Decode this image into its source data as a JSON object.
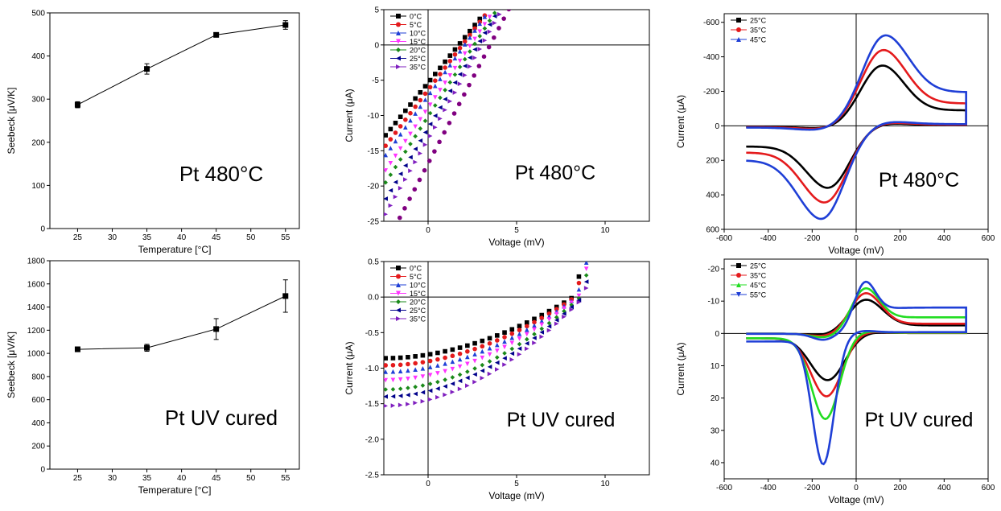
{
  "chart_data": [
    {
      "id": "seebeck-480",
      "type": "line",
      "annotation": "Pt 480°C",
      "xlabel": "Temperature [°C]",
      "ylabel": "Seebeck [μV/K]",
      "xlim": [
        21,
        57
      ],
      "ylim": [
        0,
        500
      ],
      "xticks": [
        25,
        30,
        35,
        40,
        45,
        50,
        55
      ],
      "yticks": [
        0,
        100,
        200,
        300,
        400,
        500
      ],
      "series": [
        {
          "color": "#000000",
          "marker": "square",
          "x": [
            25,
            35,
            45,
            55
          ],
          "y": [
            287,
            370,
            449,
            472
          ],
          "err": [
            7,
            12,
            5,
            10
          ]
        }
      ]
    },
    {
      "id": "iv-480",
      "type": "scatter",
      "annotation": "Pt 480°C",
      "xlabel": "Voltage (mV)",
      "ylabel": "Current (μA)",
      "xlim": [
        -2.5,
        12.5
      ],
      "ylim": [
        -25,
        5
      ],
      "xticks": [
        0,
        5,
        10
      ],
      "yticks": [
        -25,
        -20,
        -15,
        -10,
        -5,
        0,
        5
      ],
      "legend": "top-left",
      "series": [
        {
          "name": "0°C",
          "color": "#000000",
          "marker": "square",
          "x0": -2.4,
          "x1": 3.0,
          "y0": -12.8,
          "slope": 3.1
        },
        {
          "name": "5°C",
          "color": "#e41a1c",
          "marker": "circle",
          "x0": -2.4,
          "x1": 3.2,
          "y0": -14.3,
          "slope": 3.3
        },
        {
          "name": "10°C",
          "color": "#1f3fd6",
          "marker": "tri-up",
          "x0": -2.4,
          "x1": 3.4,
          "y0": -15.6,
          "slope": 3.5
        },
        {
          "name": "15°C",
          "color": "#ff33ff",
          "marker": "tri-down",
          "x0": -2.4,
          "x1": 3.6,
          "y0": -17.8,
          "slope": 3.7
        },
        {
          "name": "20°C",
          "color": "#1a8a1a",
          "marker": "diamond",
          "x0": -2.4,
          "x1": 3.8,
          "y0": -19.5,
          "slope": 3.9
        },
        {
          "name": "25°C",
          "color": "#00008b",
          "marker": "tri-left",
          "x0": -2.4,
          "x1": 4.0,
          "y0": -21.8,
          "slope": 4.2
        },
        {
          "name": "35°C",
          "color": "#7f1fbf",
          "marker": "tri-right",
          "x0": -2.4,
          "x1": 4.3,
          "y0": -24.0,
          "slope": 4.4
        },
        {
          "name": "",
          "color": "#800080",
          "marker": "circle",
          "x0": -1.6,
          "x1": 4.6,
          "y0": -24.5,
          "slope": 4.8
        }
      ]
    },
    {
      "id": "cv-480",
      "type": "line",
      "annotation": "Pt 480°C",
      "xlabel": "Voltage (mV)",
      "ylabel": "Current (μA)",
      "xlim": [
        -600,
        600
      ],
      "ylim": [
        600,
        -650
      ],
      "y_inverted": true,
      "xticks": [
        -600,
        -400,
        -200,
        0,
        200,
        400,
        600
      ],
      "yticks": [
        -600,
        -400,
        -200,
        0,
        200,
        400,
        600
      ],
      "legend": "top-left",
      "series": [
        {
          "name": "25°C",
          "color": "#000000",
          "marker": "square",
          "ipa": -350,
          "ipc": 360,
          "epa": 120,
          "epc": -130,
          "width": 140,
          "tailA": -90,
          "tailC": 120
        },
        {
          "name": "35°C",
          "color": "#e41a1c",
          "marker": "circle",
          "ipa": -440,
          "ipc": 445,
          "epa": 125,
          "epc": -145,
          "width": 145,
          "tailA": -130,
          "tailC": 155
        },
        {
          "name": "45°C",
          "color": "#1f3fd6",
          "marker": "tri-up",
          "ipa": -525,
          "ipc": 540,
          "epa": 135,
          "epc": -160,
          "width": 150,
          "tailA": -195,
          "tailC": 200
        }
      ]
    },
    {
      "id": "seebeck-uv",
      "type": "line",
      "annotation": "Pt UV cured",
      "xlabel": "Temperature [°C]",
      "ylabel": "Seebeck [μV/K]",
      "xlim": [
        21,
        57
      ],
      "ylim": [
        0,
        1800
      ],
      "xticks": [
        25,
        30,
        35,
        40,
        45,
        50,
        55
      ],
      "yticks": [
        0,
        200,
        400,
        600,
        800,
        1000,
        1200,
        1400,
        1600,
        1800
      ],
      "series": [
        {
          "color": "#000000",
          "marker": "square",
          "x": [
            25,
            35,
            45,
            55
          ],
          "y": [
            1035,
            1048,
            1210,
            1495
          ],
          "err": [
            20,
            30,
            90,
            140
          ]
        }
      ]
    },
    {
      "id": "iv-uv",
      "type": "scatter",
      "annotation": "Pt UV cured",
      "xlabel": "Voltage (mV)",
      "ylabel": "Current (μA)",
      "xlim": [
        -2.5,
        12.5
      ],
      "ylim": [
        -2.5,
        0.5
      ],
      "xticks": [
        0,
        5,
        10
      ],
      "yticks": [
        -2.5,
        -2.0,
        -1.5,
        -1.0,
        -0.5,
        0.0,
        0.5
      ],
      "legend": "top-left",
      "series": [
        {
          "name": "0°C",
          "color": "#000000",
          "marker": "square",
          "start": -0.86,
          "v0": 8.2
        },
        {
          "name": "5°C",
          "color": "#e41a1c",
          "marker": "circle",
          "start": -0.96,
          "v0": 8.3
        },
        {
          "name": "10°C",
          "color": "#1f3fd6",
          "marker": "tri-up",
          "start": -1.05,
          "v0": 8.4
        },
        {
          "name": "15°C",
          "color": "#ff33ff",
          "marker": "tri-down",
          "start": -1.17,
          "v0": 8.5
        },
        {
          "name": "20°C",
          "color": "#1a8a1a",
          "marker": "diamond",
          "start": -1.3,
          "v0": 8.6
        },
        {
          "name": "25°C",
          "color": "#00008b",
          "marker": "tri-left",
          "start": -1.4,
          "v0": 8.7
        },
        {
          "name": "35°C",
          "color": "#7f1fbf",
          "marker": "tri-right",
          "start": -1.53,
          "v0": 8.8
        }
      ]
    },
    {
      "id": "cv-uv",
      "type": "line",
      "annotation": "Pt UV cured",
      "xlabel": "Voltage (mV)",
      "ylabel": "Current (μA)",
      "xlim": [
        -600,
        600
      ],
      "ylim": [
        45,
        -23
      ],
      "y_inverted": true,
      "xticks": [
        -600,
        -400,
        -200,
        0,
        200,
        400,
        600
      ],
      "yticks": [
        -20,
        -10,
        0,
        10,
        20,
        30,
        40
      ],
      "legend": "top-left",
      "series": [
        {
          "name": "25°C",
          "color": "#000000",
          "marker": "square",
          "ipa": -10.5,
          "ipc": 14.5,
          "epa": 45,
          "epc": -130,
          "width": 110,
          "tailA": -2.5,
          "tailC": 1.5
        },
        {
          "name": "35°C",
          "color": "#e41a1c",
          "marker": "circle",
          "ipa": -12.5,
          "ipc": 19.5,
          "epa": 45,
          "epc": -135,
          "width": 100,
          "tailA": -3.0,
          "tailC": 1.5
        },
        {
          "name": "45°C",
          "color": "#22dd22",
          "marker": "tri-up",
          "ipa": -14.0,
          "ipc": 26.5,
          "epa": 45,
          "epc": -140,
          "width": 90,
          "tailA": -5.0,
          "tailC": 1.5
        },
        {
          "name": "55°C",
          "color": "#1f3fd6",
          "marker": "tri-down",
          "ipa": -16.0,
          "ipc": 40.5,
          "epa": 45,
          "epc": -150,
          "width": 70,
          "tailA": -8.0,
          "tailC": 2.5
        }
      ]
    }
  ]
}
